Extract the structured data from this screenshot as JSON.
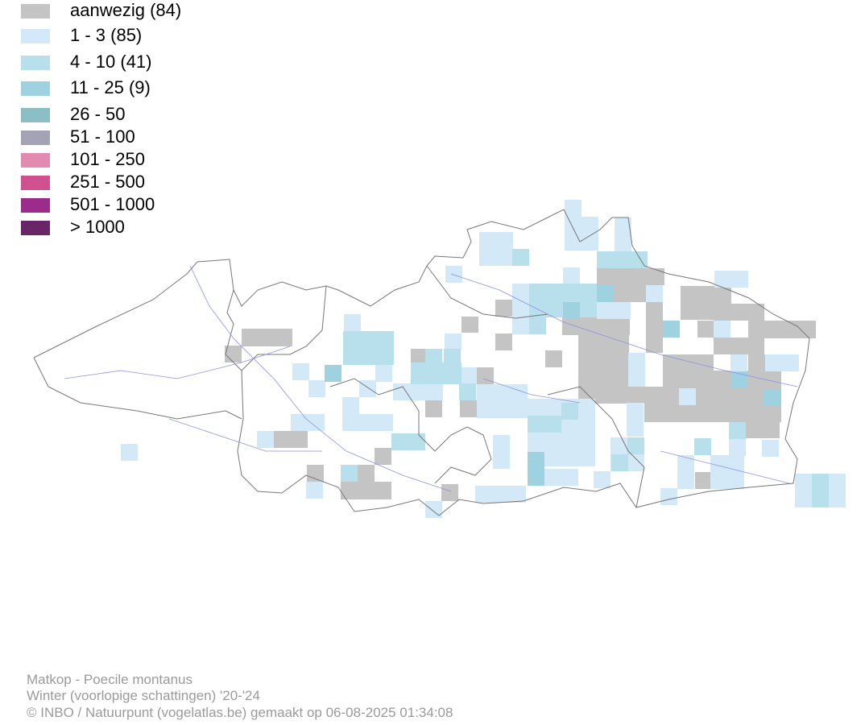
{
  "legend": [
    {
      "label": "aanwezig (84)",
      "color": "#c4c4c4"
    },
    {
      "label": "1 - 3 (85)",
      "color": "#d3e9f8"
    },
    {
      "label": "4 - 10 (41)",
      "color": "#b8dfec"
    },
    {
      "label": "11 - 25 (9)",
      "color": "#9fd2e1"
    },
    {
      "label": "26 - 50",
      "color": "#8bbec5"
    },
    {
      "label": "51 - 100",
      "color": "#a3a3b5"
    },
    {
      "label": "101 - 250",
      "color": "#e28aaf"
    },
    {
      "label": "251 - 500",
      "color": "#d05090"
    },
    {
      "label": "501 - 1000",
      "color": "#9c2c8c"
    },
    {
      "label": "> 1000",
      "color": "#6a2468"
    }
  ],
  "footer": [
    "Matkop - Poecile montanus",
    "Winter (voorlopige schattingen) '20-'24",
    "© INBO / Natuurpunt (vogelatlas.be) gemaakt op 06-08-2025 01:34:08"
  ]
}
